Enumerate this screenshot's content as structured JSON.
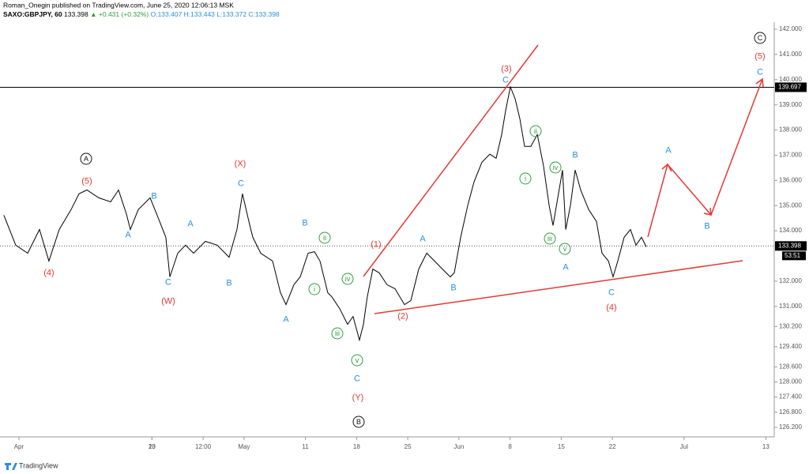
{
  "chart_data": {
    "type": "line",
    "title": "Roman_Onegin published on TradingView.com, June 25, 2020 12:06:13 MSK",
    "symbol": "SAXO:GBPJPY, 60",
    "last_price": 133.398,
    "change": "▲ +0.431 (+0.32%)",
    "ohlc": "O:133.407 H:133.443 L:133.372 C:133.398",
    "resistance": 139.697,
    "countdown": "53:51",
    "brand": "TradingView",
    "color": "#000000",
    "x": [
      -1.47,
      -0.31,
      0.85,
      2.01,
      2.93,
      3.94,
      5.1,
      5.87,
      6.64,
      7.8,
      8.96,
      9.73,
      10.5,
      10.89,
      11.66,
      12.82,
      13.59,
      14.36,
      14.75,
      15.52,
      16.29,
      17.07,
      18.22,
      19.38,
      20.54,
      21.31,
      21.85,
      22.47,
      22.86,
      23.63,
      24.79,
      25.56,
      26.1,
      26.87,
      27.49,
      28.26,
      28.88,
      29.42,
      30.19,
      30.58,
      31.35,
      32.12,
      32.66,
      33.28,
      33.67,
      34.05,
      34.59,
      35.21,
      35.98,
      36.76,
      37.68,
      38.3,
      39.07,
      39.85,
      40.62,
      41.39,
      42.16,
      42.55,
      43.17,
      43.86,
      44.48,
      45.25,
      46.02,
      46.64,
      47.18,
      47.57,
      48.03,
      48.49,
      48.96,
      49.42,
      50.04,
      50.66,
      51.27,
      51.82,
      52.2,
      52.66,
      53.13,
      53.44,
      53.9,
      54.36,
      54.9,
      55.68,
      56.45,
      56.99,
      57.61,
      58.07,
      58.53,
      59.15,
      59.77,
      60.31,
      60.85,
      61.31
    ],
    "values": [
      134.62,
      133.43,
      133.11,
      134.05,
      132.8,
      134.05,
      134.84,
      135.47,
      135.62,
      135.31,
      135.15,
      135.62,
      134.68,
      134.05,
      134.84,
      135.31,
      134.53,
      133.74,
      132.17,
      133.11,
      133.43,
      133.11,
      133.58,
      133.43,
      132.95,
      134.05,
      135.47,
      134.37,
      133.74,
      133.11,
      132.8,
      131.54,
      131.07,
      131.86,
      132.17,
      133.11,
      133.17,
      132.8,
      131.54,
      131.38,
      130.91,
      130.29,
      130.6,
      129.66,
      130.29,
      131.38,
      132.48,
      132.33,
      131.86,
      131.7,
      131.07,
      131.23,
      132.48,
      133.11,
      132.8,
      132.48,
      132.17,
      132.33,
      133.74,
      135.0,
      135.94,
      136.72,
      137.04,
      136.88,
      137.82,
      138.77,
      139.71,
      139.24,
      138.45,
      137.35,
      137.35,
      137.82,
      136.57,
      135.0,
      134.21,
      135.31,
      136.41,
      134.05,
      135.0,
      136.41,
      135.62,
      134.84,
      134.37,
      133.11,
      132.8,
      132.17,
      132.8,
      133.74,
      134.05,
      133.43,
      133.74,
      133.36
    ],
    "xlim": [
      -1.85,
      73.82
    ],
    "ylim": [
      125.82,
      142.22
    ],
    "xticks": [
      {
        "value": 0,
        "label": "Apr"
      },
      13,
      {
        "value": 13,
        "label": "20"
      },
      {
        "value": 18,
        "label": "12:00"
      },
      {
        "value": 22,
        "label": "May"
      },
      {
        "value": 28,
        "label": "11"
      },
      {
        "value": 33,
        "label": "18"
      },
      {
        "value": 38,
        "label": "25"
      },
      {
        "value": 43,
        "label": "Jun"
      },
      {
        "value": 48,
        "label": "8"
      },
      {
        "value": 53,
        "label": "15"
      },
      {
        "value": 58,
        "label": "22"
      },
      {
        "value": 65,
        "label": "Jul"
      },
      {
        "value": 73,
        "label": "13"
      }
    ],
    "yticks": [
      {
        "value": 126.2,
        "label": "126.200"
      },
      {
        "value": 126.8,
        "label": "126.800"
      },
      {
        "value": 127.4,
        "label": "127.400"
      },
      {
        "value": 128,
        "label": "128.000"
      },
      {
        "value": 128.6,
        "label": "128.600"
      },
      {
        "value": 129.4,
        "label": "129.400"
      },
      {
        "value": 130.2,
        "label": "130.200"
      },
      {
        "value": 131,
        "label": "131.000"
      },
      {
        "value": 132,
        "label": "132.000"
      },
      {
        "value": 134,
        "label": "134.000"
      },
      {
        "value": 135,
        "label": "135.000"
      },
      {
        "value": 136,
        "label": "136.000"
      },
      {
        "value": 137,
        "label": "137.000"
      },
      {
        "value": 138,
        "label": "138.000"
      },
      {
        "value": 139,
        "label": "139.000"
      },
      {
        "value": 140,
        "label": "140.000"
      },
      {
        "value": 141,
        "label": "141.000"
      },
      {
        "value": 142,
        "label": "142.000"
      }
    ],
    "wave_labels": [
      "A",
      "B",
      "C",
      "(5)",
      "(4)",
      "(W)",
      "(X)",
      "(1)",
      "(2)",
      "(Y)",
      "(3)",
      "(4)",
      "(5)",
      "B",
      "A",
      "C",
      "A",
      "B",
      "C",
      "B",
      "A",
      "C",
      "A",
      "B",
      "C",
      "A",
      "B",
      "C",
      "A",
      "B",
      "C",
      "ii",
      "i",
      "iv",
      "iii",
      "v",
      "ii",
      "i",
      "iv",
      "iii",
      "v"
    ]
  }
}
